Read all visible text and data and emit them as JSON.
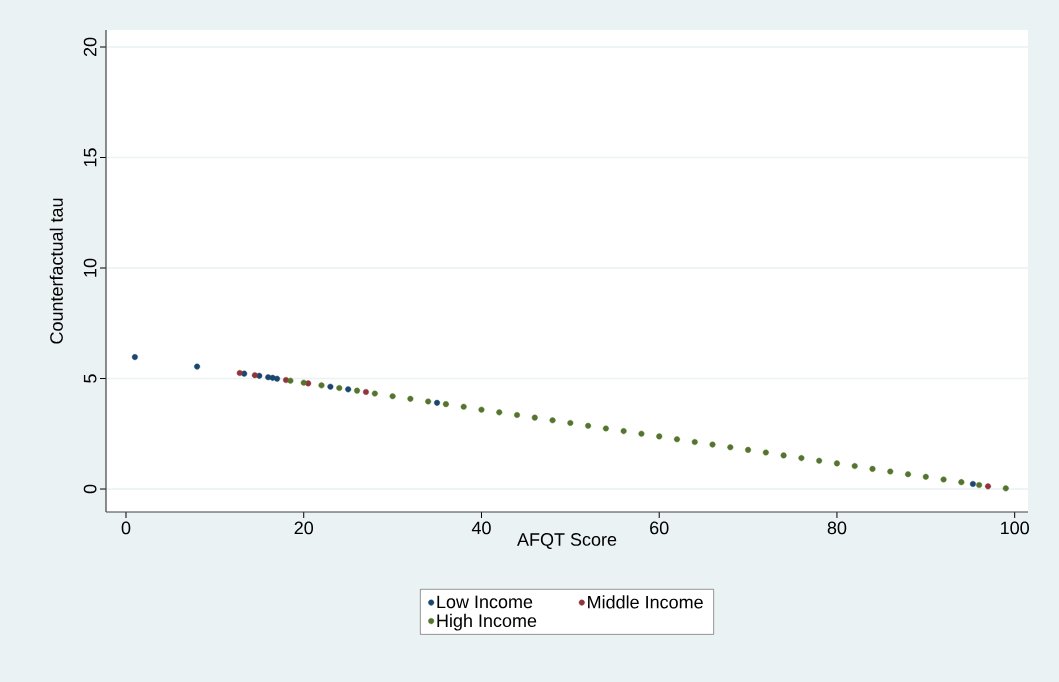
{
  "chart_data": {
    "type": "scatter",
    "xlabel": "AFQT Score",
    "ylabel": "Counterfactual tau",
    "xlim": [
      -2.25,
      101.5
    ],
    "ylim": [
      -1.04,
      20.77
    ],
    "xticks": [
      0,
      20,
      40,
      60,
      80,
      100
    ],
    "yticks": [
      0,
      5,
      10,
      15,
      20
    ],
    "grid": "y",
    "legend": "bottom",
    "series": [
      {
        "name": "Low Income",
        "color": "#1a476f",
        "x": [
          1,
          8,
          13.3,
          15,
          16,
          16.5,
          17,
          23,
          25,
          35,
          95.3
        ],
        "values": [
          5.97,
          5.54,
          5.22,
          5.12,
          5.06,
          5.03,
          4.99,
          4.63,
          4.51,
          3.9,
          0.23
        ]
      },
      {
        "name": "Middle Income",
        "color": "#90353b",
        "x": [
          12.8,
          14.5,
          18,
          20.5,
          27,
          97
        ],
        "values": [
          5.25,
          5.15,
          4.93,
          4.78,
          4.39,
          0.12
        ]
      },
      {
        "name": "High Income",
        "color": "#55752f",
        "x": [
          18.5,
          20,
          22,
          24,
          26,
          28,
          30,
          32,
          34,
          36,
          38,
          40,
          42,
          44,
          46,
          48,
          50,
          52,
          54,
          56,
          58,
          60,
          62,
          64,
          66,
          68,
          70,
          72,
          74,
          76,
          78,
          80,
          82,
          84,
          86,
          88,
          90,
          92,
          94,
          96,
          99
        ],
        "values": [
          4.9,
          4.81,
          4.69,
          4.57,
          4.45,
          4.32,
          4.2,
          4.08,
          3.96,
          3.84,
          3.72,
          3.59,
          3.47,
          3.35,
          3.23,
          3.11,
          2.99,
          2.86,
          2.74,
          2.62,
          2.5,
          2.38,
          2.25,
          2.13,
          2.01,
          1.89,
          1.77,
          1.65,
          1.52,
          1.4,
          1.28,
          1.16,
          1.04,
          0.91,
          0.79,
          0.67,
          0.55,
          0.43,
          0.31,
          0.18,
          0.03
        ]
      }
    ]
  }
}
